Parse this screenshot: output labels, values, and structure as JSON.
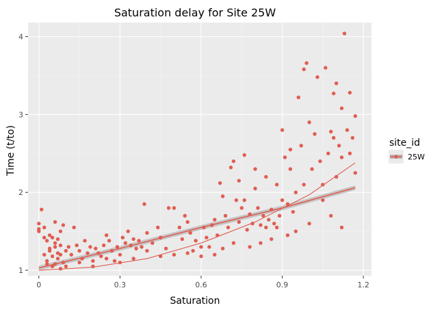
{
  "chart_data": {
    "type": "scatter",
    "title": "Saturation delay for Site 25W",
    "xlabel": "Saturation",
    "ylabel": "Time (t/to)",
    "xlim": [
      -0.04,
      1.23
    ],
    "ylim": [
      0.93,
      4.18
    ],
    "x_ticks": [
      0,
      0.3,
      0.6,
      0.9,
      1.2
    ],
    "x_tick_labels": [
      "0",
      "0.3",
      "0.6",
      "0.9",
      "1.2"
    ],
    "y_ticks": [
      1,
      2,
      3,
      4
    ],
    "y_tick_labels": [
      "1",
      "2",
      "3",
      "4"
    ],
    "grid": true,
    "legend": {
      "title": "site_id",
      "position": "right",
      "entries": [
        "25W"
      ]
    },
    "colors": {
      "points": "#e05d52",
      "trend": "#e05d52",
      "band": "#b8b8b8",
      "panel": "#ebebeb",
      "grid_major": "#ffffff",
      "grid_minor": "#f4f4f4"
    },
    "series": [
      {
        "name": "25W",
        "points": [
          [
            0.0,
            1.6
          ],
          [
            0.0,
            1.5
          ],
          [
            0.0,
            1.53
          ],
          [
            0.01,
            1.78
          ],
          [
            0.02,
            1.55
          ],
          [
            0.02,
            1.42
          ],
          [
            0.03,
            1.38
          ],
          [
            0.04,
            1.45
          ],
          [
            0.05,
            1.42
          ],
          [
            0.06,
            1.62
          ],
          [
            0.08,
            1.5
          ],
          [
            0.09,
            1.58
          ],
          [
            0.02,
            1.2
          ],
          [
            0.03,
            1.12
          ],
          [
            0.04,
            1.25
          ],
          [
            0.05,
            1.18
          ],
          [
            0.06,
            1.3
          ],
          [
            0.07,
            1.22
          ],
          [
            0.05,
            1.05
          ],
          [
            0.06,
            1.08
          ],
          [
            0.07,
            1.15
          ],
          [
            0.08,
            1.02
          ],
          [
            0.09,
            1.1
          ],
          [
            0.1,
            1.25
          ],
          [
            0.06,
            1.35
          ],
          [
            0.07,
            1.4
          ],
          [
            0.08,
            1.32
          ],
          [
            0.04,
            1.28
          ],
          [
            0.03,
            1.08
          ],
          [
            0.08,
            1.2
          ],
          [
            0.1,
            1.05
          ],
          [
            0.11,
            1.3
          ],
          [
            0.12,
            1.2
          ],
          [
            0.13,
            1.55
          ],
          [
            0.14,
            1.32
          ],
          [
            0.15,
            1.25
          ],
          [
            0.16,
            1.15
          ],
          [
            0.17,
            1.38
          ],
          [
            0.18,
            1.22
          ],
          [
            0.19,
            1.3
          ],
          [
            0.2,
            1.12
          ],
          [
            0.21,
            1.28
          ],
          [
            0.22,
            1.22
          ],
          [
            0.23,
            1.18
          ],
          [
            0.24,
            1.32
          ],
          [
            0.25,
            1.45
          ],
          [
            0.26,
            1.38
          ],
          [
            0.27,
            1.25
          ],
          [
            0.28,
            1.12
          ],
          [
            0.29,
            1.3
          ],
          [
            0.3,
            1.2
          ],
          [
            0.31,
            1.42
          ],
          [
            0.32,
            1.35
          ],
          [
            0.33,
            1.5
          ],
          [
            0.34,
            1.32
          ],
          [
            0.35,
            1.4
          ],
          [
            0.36,
            1.28
          ],
          [
            0.37,
            1.38
          ],
          [
            0.38,
            1.3
          ],
          [
            0.39,
            1.85
          ],
          [
            0.4,
            1.48
          ],
          [
            0.42,
            1.35
          ],
          [
            0.44,
            1.55
          ],
          [
            0.45,
            1.42
          ],
          [
            0.47,
            1.28
          ],
          [
            0.48,
            1.8
          ],
          [
            0.5,
            1.8
          ],
          [
            0.52,
            1.55
          ],
          [
            0.53,
            1.4
          ],
          [
            0.54,
            1.7
          ],
          [
            0.55,
            1.62
          ],
          [
            0.56,
            1.48
          ],
          [
            0.57,
            1.25
          ],
          [
            0.58,
            1.38
          ],
          [
            0.6,
            1.3
          ],
          [
            0.61,
            1.55
          ],
          [
            0.62,
            1.42
          ],
          [
            0.63,
            1.3
          ],
          [
            0.64,
            1.58
          ],
          [
            0.65,
            1.65
          ],
          [
            0.66,
            1.45
          ],
          [
            0.67,
            2.12
          ],
          [
            0.68,
            1.95
          ],
          [
            0.69,
            1.7
          ],
          [
            0.7,
            1.55
          ],
          [
            0.71,
            2.32
          ],
          [
            0.72,
            2.4
          ],
          [
            0.73,
            1.9
          ],
          [
            0.74,
            1.62
          ],
          [
            0.75,
            1.8
          ],
          [
            0.76,
            2.48
          ],
          [
            0.77,
            1.52
          ],
          [
            0.78,
            1.72
          ],
          [
            0.79,
            1.6
          ],
          [
            0.8,
            2.3
          ],
          [
            0.81,
            1.8
          ],
          [
            0.82,
            1.58
          ],
          [
            0.83,
            1.7
          ],
          [
            0.84,
            1.55
          ],
          [
            0.85,
            1.65
          ],
          [
            0.86,
            1.78
          ],
          [
            0.87,
            1.6
          ],
          [
            0.88,
            1.55
          ],
          [
            0.89,
            1.7
          ],
          [
            0.9,
            2.8
          ],
          [
            0.9,
            1.9
          ],
          [
            0.91,
            2.45
          ],
          [
            0.92,
            1.85
          ],
          [
            0.93,
            2.3
          ],
          [
            0.94,
            1.75
          ],
          [
            0.95,
            2.0
          ],
          [
            0.96,
            3.22
          ],
          [
            0.97,
            2.6
          ],
          [
            0.98,
            3.58
          ],
          [
            0.99,
            3.66
          ],
          [
            1.0,
            2.9
          ],
          [
            1.01,
            2.3
          ],
          [
            1.02,
            2.75
          ],
          [
            1.03,
            3.48
          ],
          [
            1.04,
            2.4
          ],
          [
            1.05,
            2.1
          ],
          [
            1.06,
            3.6
          ],
          [
            1.07,
            2.5
          ],
          [
            1.08,
            2.78
          ],
          [
            1.09,
            3.27
          ],
          [
            1.1,
            3.4
          ],
          [
            1.11,
            2.6
          ],
          [
            1.12,
            3.08
          ],
          [
            1.13,
            4.04
          ],
          [
            1.14,
            2.8
          ],
          [
            1.15,
            3.28
          ],
          [
            1.16,
            2.7
          ],
          [
            1.17,
            2.98
          ],
          [
            1.17,
            2.25
          ],
          [
            1.09,
            2.7
          ],
          [
            1.1,
            2.2
          ],
          [
            1.12,
            2.45
          ],
          [
            1.05,
            1.9
          ],
          [
            1.0,
            1.6
          ],
          [
            0.95,
            1.5
          ],
          [
            0.92,
            1.45
          ],
          [
            0.86,
            1.4
          ],
          [
            0.82,
            1.35
          ],
          [
            0.78,
            1.3
          ],
          [
            0.72,
            1.35
          ],
          [
            0.68,
            1.28
          ],
          [
            0.65,
            1.2
          ],
          [
            0.6,
            1.18
          ],
          [
            0.55,
            1.22
          ],
          [
            0.5,
            1.2
          ],
          [
            0.45,
            1.18
          ],
          [
            0.4,
            1.25
          ],
          [
            0.35,
            1.15
          ],
          [
            0.3,
            1.1
          ],
          [
            0.25,
            1.15
          ],
          [
            0.2,
            1.05
          ],
          [
            0.15,
            1.1
          ],
          [
            1.12,
            1.55
          ],
          [
            1.08,
            1.7
          ],
          [
            1.15,
            2.5
          ],
          [
            0.98,
            2.1
          ],
          [
            0.93,
            2.55
          ],
          [
            0.88,
            2.1
          ],
          [
            0.84,
            2.2
          ],
          [
            0.8,
            2.05
          ],
          [
            0.76,
            1.9
          ],
          [
            0.74,
            2.15
          ]
        ]
      }
    ],
    "trend_lines": [
      {
        "kind": "linear",
        "points": [
          [
            0,
            1.03
          ],
          [
            0.3,
            1.28
          ],
          [
            0.6,
            1.55
          ],
          [
            0.9,
            1.8
          ],
          [
            1.17,
            2.06
          ]
        ]
      },
      {
        "kind": "quadratic",
        "points": [
          [
            0,
            1.0
          ],
          [
            0.2,
            1.04
          ],
          [
            0.4,
            1.15
          ],
          [
            0.6,
            1.35
          ],
          [
            0.8,
            1.62
          ],
          [
            1.0,
            1.97
          ],
          [
            1.17,
            2.38
          ]
        ]
      }
    ]
  }
}
